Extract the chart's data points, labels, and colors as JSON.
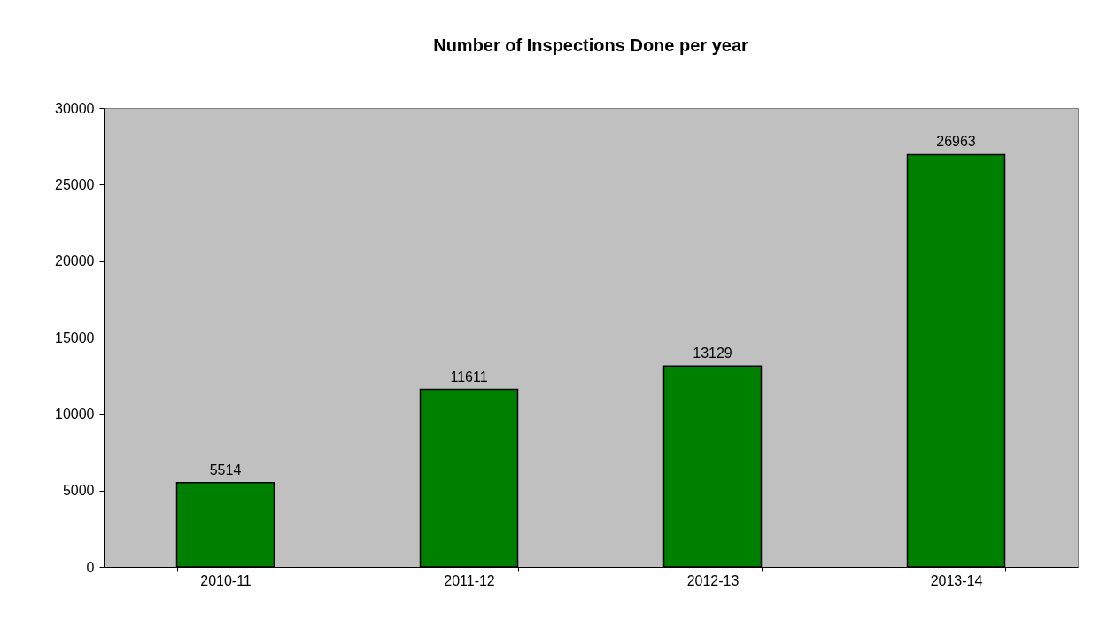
{
  "chart_data": {
    "type": "bar",
    "title": "Number of Inspections Done per year",
    "categories": [
      "2010-11",
      "2011-12",
      "2012-13",
      "2013-14"
    ],
    "values": [
      5514,
      11611,
      13129,
      26963
    ],
    "color": "#008000",
    "ylim": [
      0,
      30000
    ],
    "yticks": [
      0,
      5000,
      10000,
      15000,
      20000,
      25000,
      30000
    ],
    "grid": false,
    "data_labels": true
  }
}
